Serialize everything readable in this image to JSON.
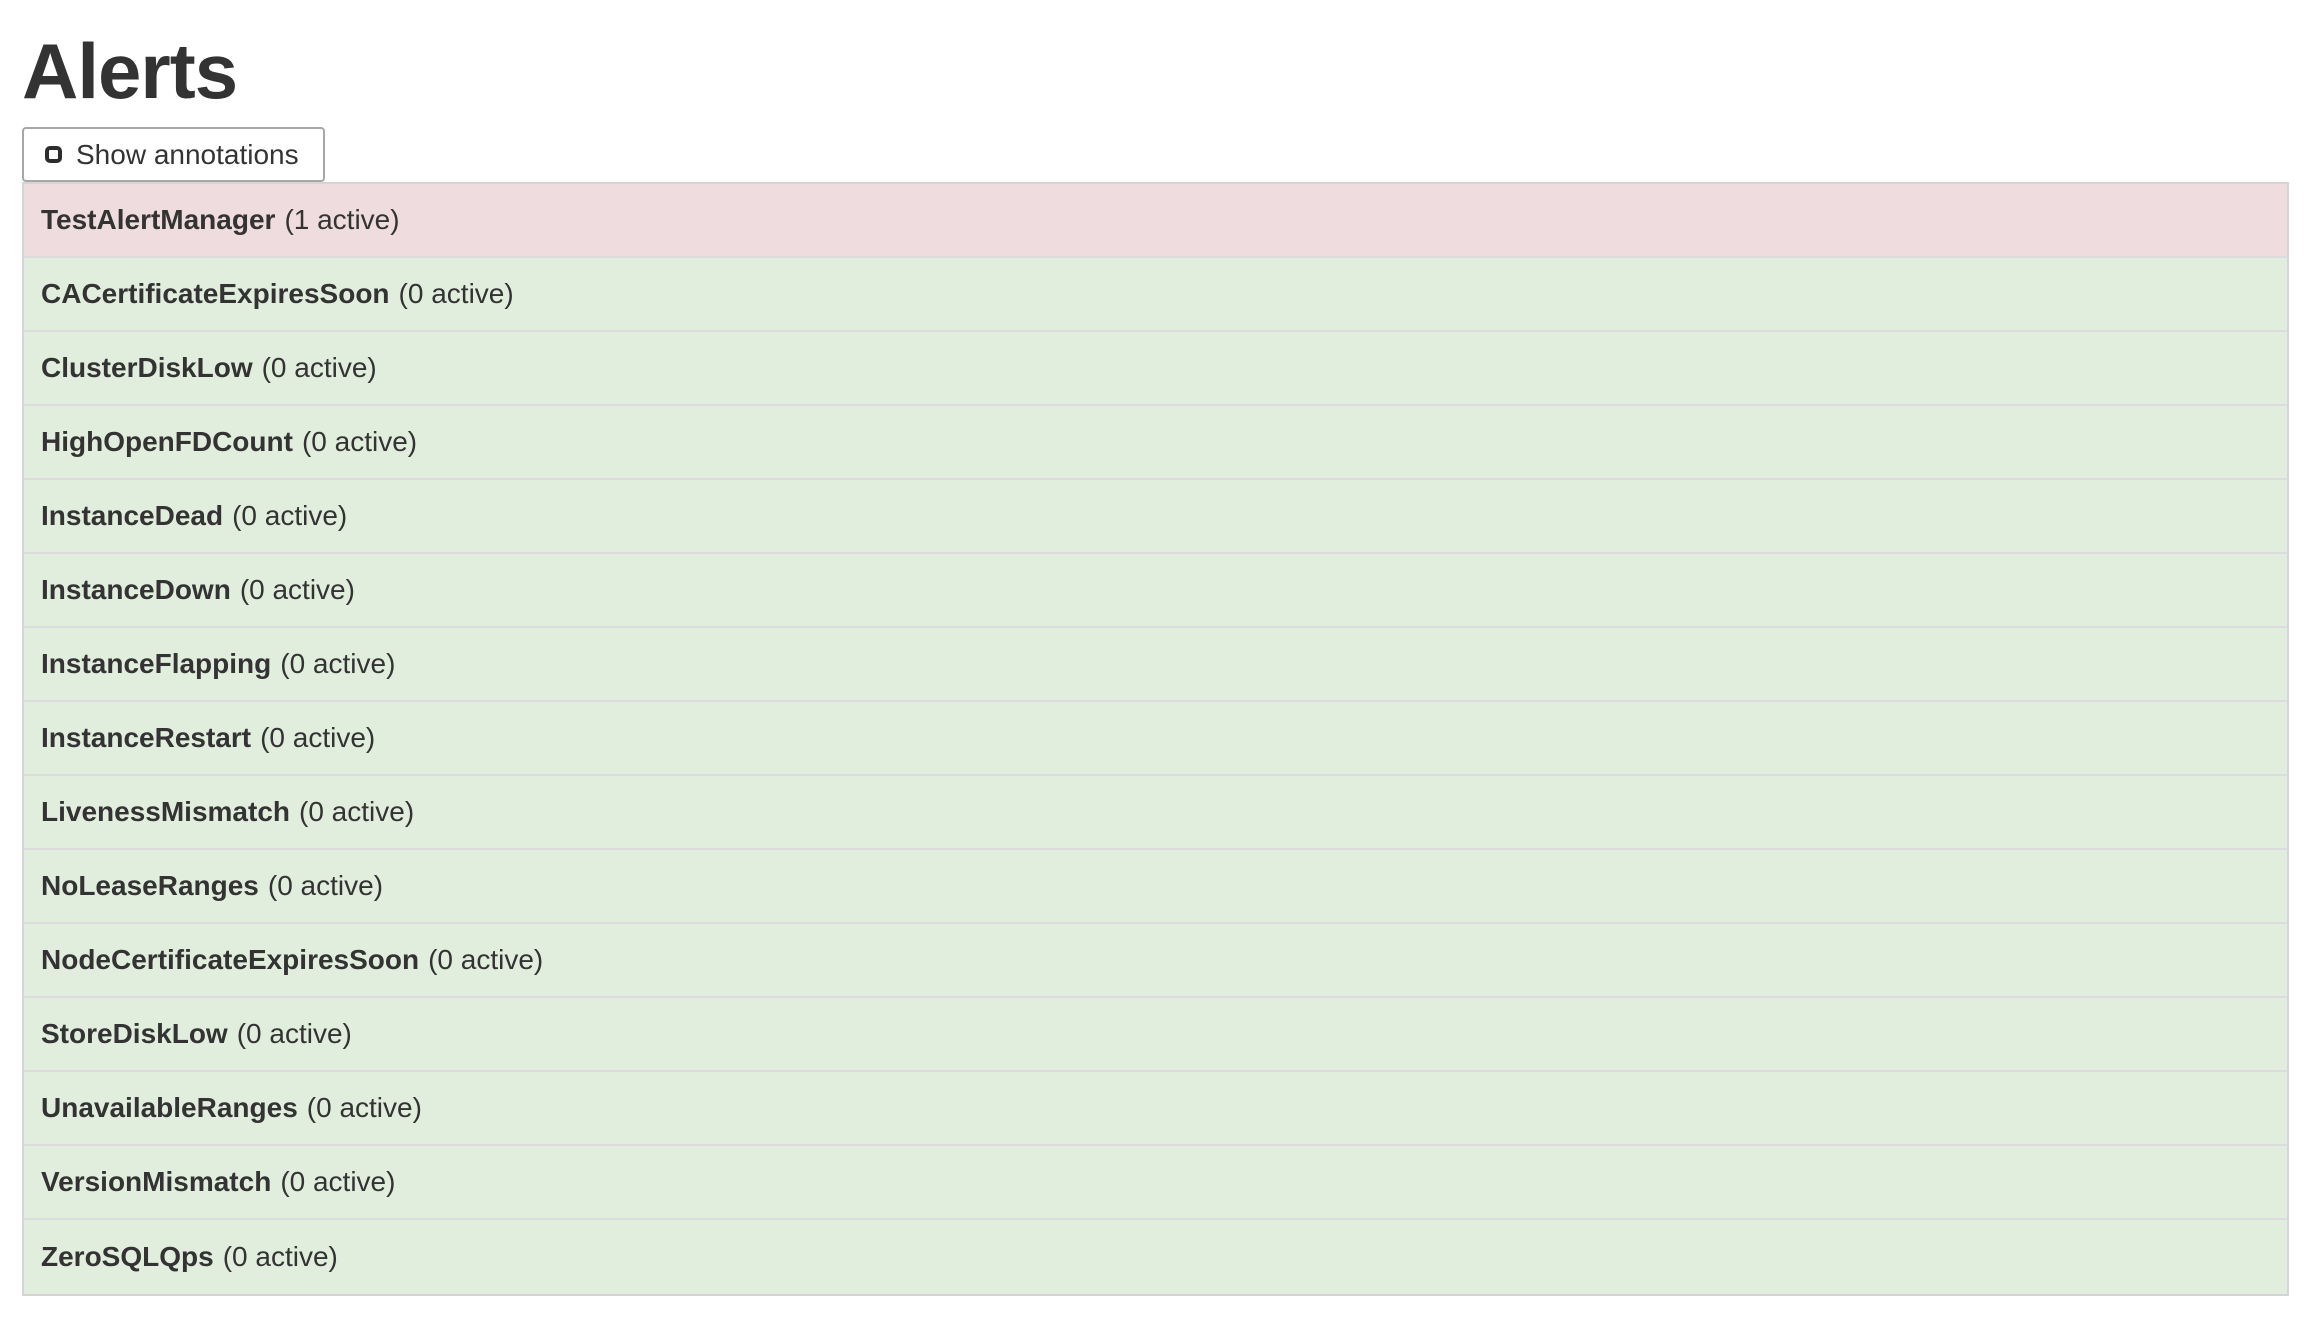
{
  "page": {
    "title": "Alerts"
  },
  "toolbar": {
    "show_annotations_label": "Show annotations",
    "annotations_checked": false
  },
  "alerts": {
    "items": [
      {
        "name": "TestAlertManager",
        "active_count": 1,
        "count_label": "(1 active)",
        "state": "firing"
      },
      {
        "name": "CACertificateExpiresSoon",
        "active_count": 0,
        "count_label": "(0 active)",
        "state": "inactive"
      },
      {
        "name": "ClusterDiskLow",
        "active_count": 0,
        "count_label": "(0 active)",
        "state": "inactive"
      },
      {
        "name": "HighOpenFDCount",
        "active_count": 0,
        "count_label": "(0 active)",
        "state": "inactive"
      },
      {
        "name": "InstanceDead",
        "active_count": 0,
        "count_label": "(0 active)",
        "state": "inactive"
      },
      {
        "name": "InstanceDown",
        "active_count": 0,
        "count_label": "(0 active)",
        "state": "inactive"
      },
      {
        "name": "InstanceFlapping",
        "active_count": 0,
        "count_label": "(0 active)",
        "state": "inactive"
      },
      {
        "name": "InstanceRestart",
        "active_count": 0,
        "count_label": "(0 active)",
        "state": "inactive"
      },
      {
        "name": "LivenessMismatch",
        "active_count": 0,
        "count_label": "(0 active)",
        "state": "inactive"
      },
      {
        "name": "NoLeaseRanges",
        "active_count": 0,
        "count_label": "(0 active)",
        "state": "inactive"
      },
      {
        "name": "NodeCertificateExpiresSoon",
        "active_count": 0,
        "count_label": "(0 active)",
        "state": "inactive"
      },
      {
        "name": "StoreDiskLow",
        "active_count": 0,
        "count_label": "(0 active)",
        "state": "inactive"
      },
      {
        "name": "UnavailableRanges",
        "active_count": 0,
        "count_label": "(0 active)",
        "state": "inactive"
      },
      {
        "name": "VersionMismatch",
        "active_count": 0,
        "count_label": "(0 active)",
        "state": "inactive"
      },
      {
        "name": "ZeroSQLQps",
        "active_count": 0,
        "count_label": "(0 active)",
        "state": "inactive"
      }
    ]
  },
  "colors": {
    "firing_bg": "#eedcde",
    "inactive_bg": "#e2eedd",
    "row_border": "#dcdcde",
    "table_border": "#d5d5d7",
    "button_border": "#a7a7a7",
    "text": "#333333"
  }
}
